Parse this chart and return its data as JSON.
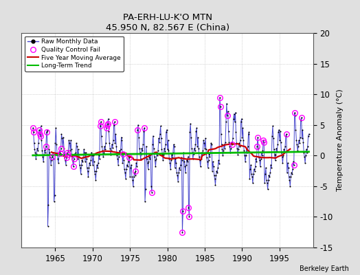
{
  "title": "PA-ERH-LU-K'O MTN",
  "subtitle": "45.950 N, 82.567 E (China)",
  "ylabel": "Temperature Anomaly (°C)",
  "credit": "Berkeley Earth",
  "ylim": [
    -15,
    20
  ],
  "yticks": [
    -15,
    -10,
    -5,
    0,
    5,
    10,
    15,
    20
  ],
  "xlim": [
    1960.5,
    1999.5
  ],
  "xticks": [
    1965,
    1970,
    1975,
    1980,
    1985,
    1990,
    1995
  ],
  "start_year": 1962,
  "raw_monthly": [
    4.5,
    3.8,
    2.1,
    1.0,
    0.5,
    -0.5,
    0.3,
    1.2,
    0.8,
    2.0,
    4.2,
    3.5,
    3.2,
    4.8,
    2.5,
    0.8,
    -0.2,
    -1.0,
    0.2,
    0.9,
    0.5,
    1.5,
    3.8,
    4.1,
    -11.5,
    -8.0,
    1.0,
    0.5,
    -0.3,
    -1.5,
    -0.8,
    -0.2,
    0.3,
    -0.5,
    -7.5,
    -6.5,
    2.0,
    4.5,
    1.8,
    0.3,
    -0.5,
    -1.2,
    0.0,
    0.7,
    0.4,
    1.2,
    3.5,
    2.8,
    1.5,
    3.0,
    1.2,
    -0.2,
    -0.8,
    -1.5,
    -0.3,
    0.5,
    0.2,
    0.8,
    2.5,
    2.0,
    0.8,
    2.5,
    1.0,
    -0.3,
    -0.9,
    -1.8,
    -0.5,
    0.3,
    0.0,
    0.5,
    2.0,
    1.5,
    -0.5,
    1.0,
    -0.2,
    -1.5,
    -2.0,
    -3.0,
    -1.5,
    -0.8,
    -1.0,
    -0.3,
    1.0,
    0.5,
    -1.0,
    0.5,
    -0.5,
    -2.0,
    -2.5,
    -3.5,
    -2.0,
    -1.2,
    -1.5,
    -0.8,
    0.5,
    0.0,
    -1.5,
    0.0,
    -1.0,
    -2.5,
    -3.0,
    -4.0,
    -2.5,
    -1.5,
    -2.0,
    -1.2,
    0.0,
    -0.5,
    4.8,
    5.5,
    3.2,
    1.5,
    0.8,
    -0.2,
    0.5,
    1.5,
    1.0,
    2.0,
    4.5,
    5.0,
    5.2,
    6.0,
    4.0,
    2.0,
    1.2,
    0.2,
    0.8,
    1.8,
    1.3,
    2.5,
    5.0,
    5.5,
    2.0,
    3.5,
    1.5,
    0.0,
    -0.5,
    -1.5,
    -0.2,
    0.8,
    0.3,
    1.0,
    3.0,
    2.5,
    -1.2,
    0.3,
    -0.8,
    -2.2,
    -2.8,
    -3.8,
    -2.2,
    -1.5,
    -1.8,
    -1.0,
    0.2,
    -0.3,
    -3.5,
    -2.0,
    -1.5,
    -3.5,
    -4.0,
    -5.0,
    -3.5,
    -2.8,
    -3.2,
    -2.5,
    -1.2,
    -1.8,
    4.2,
    5.0,
    3.0,
    1.2,
    0.5,
    -0.5,
    0.3,
    1.2,
    0.8,
    1.8,
    4.0,
    4.5,
    -7.5,
    -5.5,
    1.5,
    -0.5,
    -1.2,
    -2.2,
    -1.0,
    -0.2,
    -0.5,
    0.2,
    -5.0,
    -6.0,
    1.8,
    3.2,
    1.2,
    -0.2,
    -0.8,
    -1.8,
    -0.5,
    0.5,
    0.0,
    0.8,
    2.8,
    2.2,
    3.5,
    4.8,
    2.8,
    1.0,
    0.2,
    -0.8,
    0.2,
    1.2,
    0.7,
    1.8,
    3.8,
    4.2,
    1.0,
    2.5,
    0.8,
    -0.5,
    -1.2,
    -2.2,
    -0.8,
    0.2,
    -0.3,
    0.5,
    1.8,
    1.5,
    -2.0,
    -0.5,
    -1.2,
    -2.8,
    -3.2,
    -4.2,
    -2.8,
    -2.0,
    -2.3,
    -1.5,
    -0.3,
    -0.8,
    -12.5,
    -9.0,
    0.5,
    -1.0,
    -1.8,
    -2.8,
    -1.5,
    -0.8,
    -1.0,
    -0.2,
    -8.5,
    -10.0,
    3.8,
    5.2,
    3.0,
    1.2,
    0.5,
    -0.5,
    0.3,
    1.2,
    0.8,
    1.8,
    4.0,
    4.5,
    1.5,
    3.0,
    1.2,
    -0.2,
    -0.8,
    -1.8,
    -0.5,
    0.5,
    0.0,
    0.8,
    2.5,
    2.0,
    1.2,
    2.8,
    1.0,
    -0.3,
    -1.0,
    -2.0,
    -0.7,
    0.3,
    -0.2,
    0.5,
    2.0,
    1.8,
    -2.5,
    -1.0,
    -1.8,
    -3.2,
    -3.8,
    -4.8,
    -3.2,
    -2.5,
    -2.8,
    -2.0,
    -0.8,
    -1.3,
    9.5,
    8.0,
    3.5,
    1.8,
    1.0,
    0.0,
    0.8,
    1.8,
    1.2,
    2.2,
    5.5,
    8.5,
    6.5,
    7.2,
    4.0,
    2.2,
    1.5,
    0.5,
    1.2,
    2.2,
    1.8,
    2.8,
    6.0,
    6.8,
    5.5,
    7.0,
    3.8,
    2.0,
    1.2,
    0.2,
    1.0,
    2.0,
    1.5,
    2.5,
    5.5,
    6.0,
    3.0,
    4.5,
    2.5,
    0.8,
    0.0,
    -1.0,
    0.0,
    1.0,
    0.5,
    1.5,
    3.5,
    3.8,
    -3.8,
    -2.2,
    -1.5,
    -3.0,
    -3.5,
    -4.5,
    -3.0,
    -2.2,
    -2.5,
    -1.8,
    -0.5,
    -1.0,
    1.5,
    3.0,
    1.2,
    -0.3,
    -0.8,
    -1.8,
    -0.5,
    0.5,
    0.0,
    0.8,
    2.5,
    2.2,
    -4.5,
    -3.0,
    -2.0,
    -4.0,
    -4.5,
    -5.5,
    -4.0,
    -3.2,
    -3.5,
    -2.8,
    -1.5,
    -2.0,
    3.2,
    4.8,
    2.8,
    1.0,
    0.2,
    -0.8,
    0.2,
    1.2,
    0.7,
    1.8,
    3.8,
    4.2,
    2.5,
    4.0,
    2.2,
    0.5,
    -0.2,
    -1.2,
    0.0,
    1.0,
    0.5,
    1.5,
    3.2,
    3.5,
    -2.8,
    -1.2,
    -2.0,
    -3.5,
    -4.0,
    -5.0,
    -3.5,
    -2.8,
    -3.0,
    -2.2,
    -1.0,
    -1.5,
    7.0,
    6.5,
    4.2,
    2.5,
    1.8,
    0.8,
    1.5,
    2.5,
    2.0,
    3.0,
    5.8,
    6.2,
    2.8,
    4.2,
    2.2,
    0.5,
    -0.2,
    -1.2,
    0.0,
    1.0,
    0.5,
    1.5,
    3.2,
    3.5
  ],
  "qc_indices": [
    0,
    1,
    10,
    11,
    12,
    21,
    22,
    31,
    44,
    45,
    54,
    55,
    56,
    65,
    66,
    108,
    109,
    118,
    119,
    120,
    131,
    145,
    155,
    165,
    168,
    179,
    191,
    240,
    241,
    250,
    251,
    300,
    301,
    312,
    320,
    360,
    361,
    370,
    371,
    407,
    419,
    420,
    431
  ],
  "colors": {
    "raw_line": "#4444cc",
    "raw_marker": "#000000",
    "qc_marker": "#ff00ff",
    "moving_avg": "#cc0000",
    "trend": "#00bb00",
    "background": "#e0e0e0",
    "plot_bg": "#ffffff"
  },
  "figsize": [
    5.24,
    4.0
  ],
  "dpi": 100
}
